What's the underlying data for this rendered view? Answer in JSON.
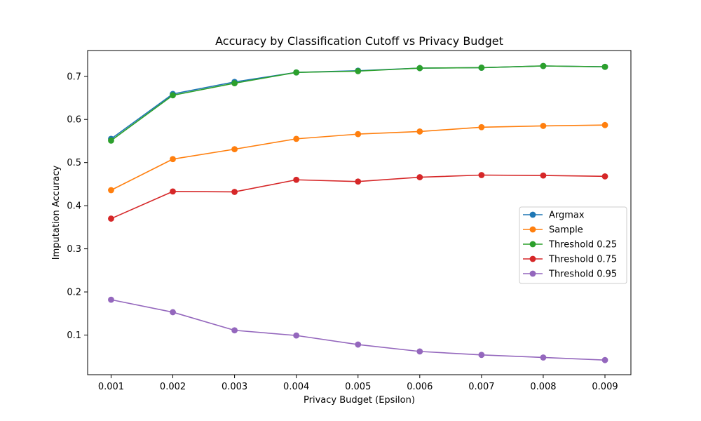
{
  "chart_data": {
    "type": "line",
    "title": "Accuracy by Classification Cutoff vs Privacy Budget",
    "xlabel": "Privacy Budget (Epsilon)",
    "ylabel": "Imputation Accuracy",
    "x": [
      0.001,
      0.002,
      0.003,
      0.004,
      0.005,
      0.006,
      0.007,
      0.008,
      0.009
    ],
    "x_tick_labels": [
      "0.001",
      "0.002",
      "0.003",
      "0.004",
      "0.005",
      "0.006",
      "0.007",
      "0.008",
      "0.009"
    ],
    "y_ticks": [
      0.1,
      0.2,
      0.3,
      0.4,
      0.5,
      0.6,
      0.7
    ],
    "y_tick_labels": [
      "0.1",
      "0.2",
      "0.3",
      "0.4",
      "0.5",
      "0.6",
      "0.7"
    ],
    "xlim": [
      0.00062,
      0.00942
    ],
    "ylim": [
      0.0081,
      0.7598
    ],
    "grid": false,
    "legend_position": "center-right",
    "series": [
      {
        "name": "Argmax",
        "color": "#1f77b4",
        "values": [
          0.555,
          0.659,
          0.687,
          0.709,
          0.713,
          0.719,
          0.72,
          0.724,
          0.722
        ]
      },
      {
        "name": "Sample",
        "color": "#ff7f0e",
        "values": [
          0.436,
          0.508,
          0.531,
          0.555,
          0.566,
          0.572,
          0.582,
          0.585,
          0.587
        ]
      },
      {
        "name": "Threshold 0.25",
        "color": "#2ca02c",
        "values": [
          0.551,
          0.656,
          0.684,
          0.709,
          0.712,
          0.719,
          0.72,
          0.724,
          0.722
        ]
      },
      {
        "name": "Threshold 0.75",
        "color": "#d62728",
        "values": [
          0.37,
          0.433,
          0.432,
          0.46,
          0.456,
          0.466,
          0.471,
          0.47,
          0.468
        ]
      },
      {
        "name": "Threshold 0.95",
        "color": "#9467bd",
        "values": [
          0.182,
          0.153,
          0.111,
          0.099,
          0.078,
          0.062,
          0.054,
          0.048,
          0.042
        ]
      }
    ]
  }
}
